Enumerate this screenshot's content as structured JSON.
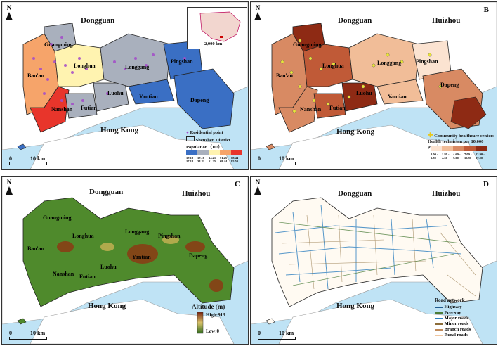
{
  "panels": {
    "a": {
      "letter": "A",
      "regions": {
        "north": "Dongguan",
        "south": "Hong Kong"
      },
      "districts": [
        "Guangming",
        "Longhua",
        "Bao'an",
        "Longgang",
        "Pingshan",
        "Luohu",
        "Yantian",
        "Dapeng",
        "Nanshan",
        "Futian"
      ],
      "legend": {
        "point": "Residential point",
        "boundary": "Shenzhen District",
        "title": "Population（10⁵）",
        "classes": [
          "17.18 - 17.18",
          "17.18 - 34.21",
          "34.21 - 51.25",
          "51.25 - 68.44",
          "68.44 - 85.53"
        ],
        "colors": [
          "#3a6fc4",
          "#a9b0bd",
          "#fff3b0",
          "#f6a46a",
          "#e8352b"
        ]
      },
      "inset_scale": "2,000 km",
      "scale": "10 km",
      "scale_zero": "0"
    },
    "b": {
      "letter": "B",
      "regions": {
        "north": "Dongguan",
        "northeast": "Huizhou",
        "south": "Hong Kong"
      },
      "districts": [
        "Guangming",
        "Longhua",
        "Bao'an",
        "Longgang",
        "Pingshan",
        "Luohu",
        "Yantian",
        "Dapeng",
        "Nanshan",
        "Futian"
      ],
      "legend": {
        "point": "Community healthcare centers",
        "title": "Health technician per 10,000 people",
        "classes": [
          "0.00 - 1.80",
          "1.80 - 4.60",
          "4.60 - 7.00",
          "7.00 - 13.90",
          "13.90 - 27.00"
        ],
        "colors": [
          "#fbe3d1",
          "#f1bd98",
          "#d88a63",
          "#c05a37",
          "#8e2a14"
        ]
      },
      "scale": "10 km",
      "scale_zero": "0"
    },
    "c": {
      "letter": "C",
      "regions": {
        "north": "Dongguan",
        "northeast": "Huizhou",
        "south": "Hong Kong"
      },
      "districts": [
        "Guangming",
        "Longhua",
        "Bao'an",
        "Longgang",
        "Pingshan",
        "Luohu",
        "Yantian",
        "Dapeng",
        "Nanshan",
        "Futian"
      ],
      "legend": {
        "title": "Altitude (m)",
        "high": "High:913",
        "low": "Low:0"
      },
      "scale": "10 km",
      "scale_zero": "0"
    },
    "d": {
      "letter": "D",
      "regions": {
        "north": "Dongguan",
        "northeast": "Huizhou",
        "south": "Hong Kong"
      },
      "legend": {
        "title": "Road network",
        "items": [
          "Highway",
          "Freeway",
          "Major roads",
          "Minor roads",
          "Branch roads",
          "Rural roads"
        ],
        "colors": [
          "#1f5a8f",
          "#4b7d3a",
          "#2d7fbf",
          "#8c6d3a",
          "#c08a5a",
          "#f0c6a0"
        ]
      },
      "scale": "10 km",
      "scale_zero": "0"
    }
  },
  "north_label": "N",
  "colors": {
    "sea": "#bfe3f5",
    "land": "#ffffff",
    "border": "#666666"
  }
}
